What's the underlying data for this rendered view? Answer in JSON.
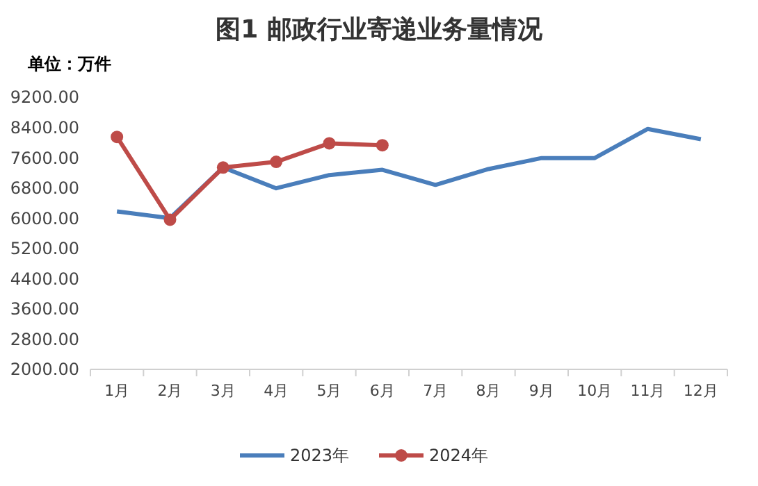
{
  "chart_data": {
    "type": "line",
    "title": "图1  邮政行业寄递业务量情况",
    "ylabel": "单位：万件",
    "categories": [
      "1月",
      "2月",
      "3月",
      "4月",
      "5月",
      "6月",
      "7月",
      "8月",
      "9月",
      "10月",
      "11月",
      "12月"
    ],
    "series": [
      {
        "name": "2023年",
        "color": "#4a7ebb",
        "marker": "none",
        "values": [
          6180,
          6000,
          7340,
          6790,
          7140,
          7280,
          6880,
          7300,
          7590,
          7590,
          8360,
          8090
        ]
      },
      {
        "name": "2024年",
        "color": "#be4b48",
        "marker": "circle",
        "values": [
          8150,
          5960,
          7340,
          7490,
          7980,
          7930,
          null,
          null,
          null,
          null,
          null,
          null
        ]
      }
    ],
    "ylim": [
      2000,
      9200
    ],
    "yticks": [
      {
        "value": 2000,
        "label": "2000.00"
      },
      {
        "value": 2800,
        "label": "2800.00"
      },
      {
        "value": 3600,
        "label": "3600.00"
      },
      {
        "value": 4400,
        "label": "4400.00"
      },
      {
        "value": 5200,
        "label": "5200.00"
      },
      {
        "value": 6000,
        "label": "6000.00"
      },
      {
        "value": 6800,
        "label": "6800.00"
      },
      {
        "value": 7600,
        "label": "7600.00"
      },
      {
        "value": 8400,
        "label": "8400.00"
      },
      {
        "value": 9200,
        "label": "9200.00"
      }
    ],
    "grid": false,
    "legend": "bottom",
    "line_style": "solid"
  }
}
